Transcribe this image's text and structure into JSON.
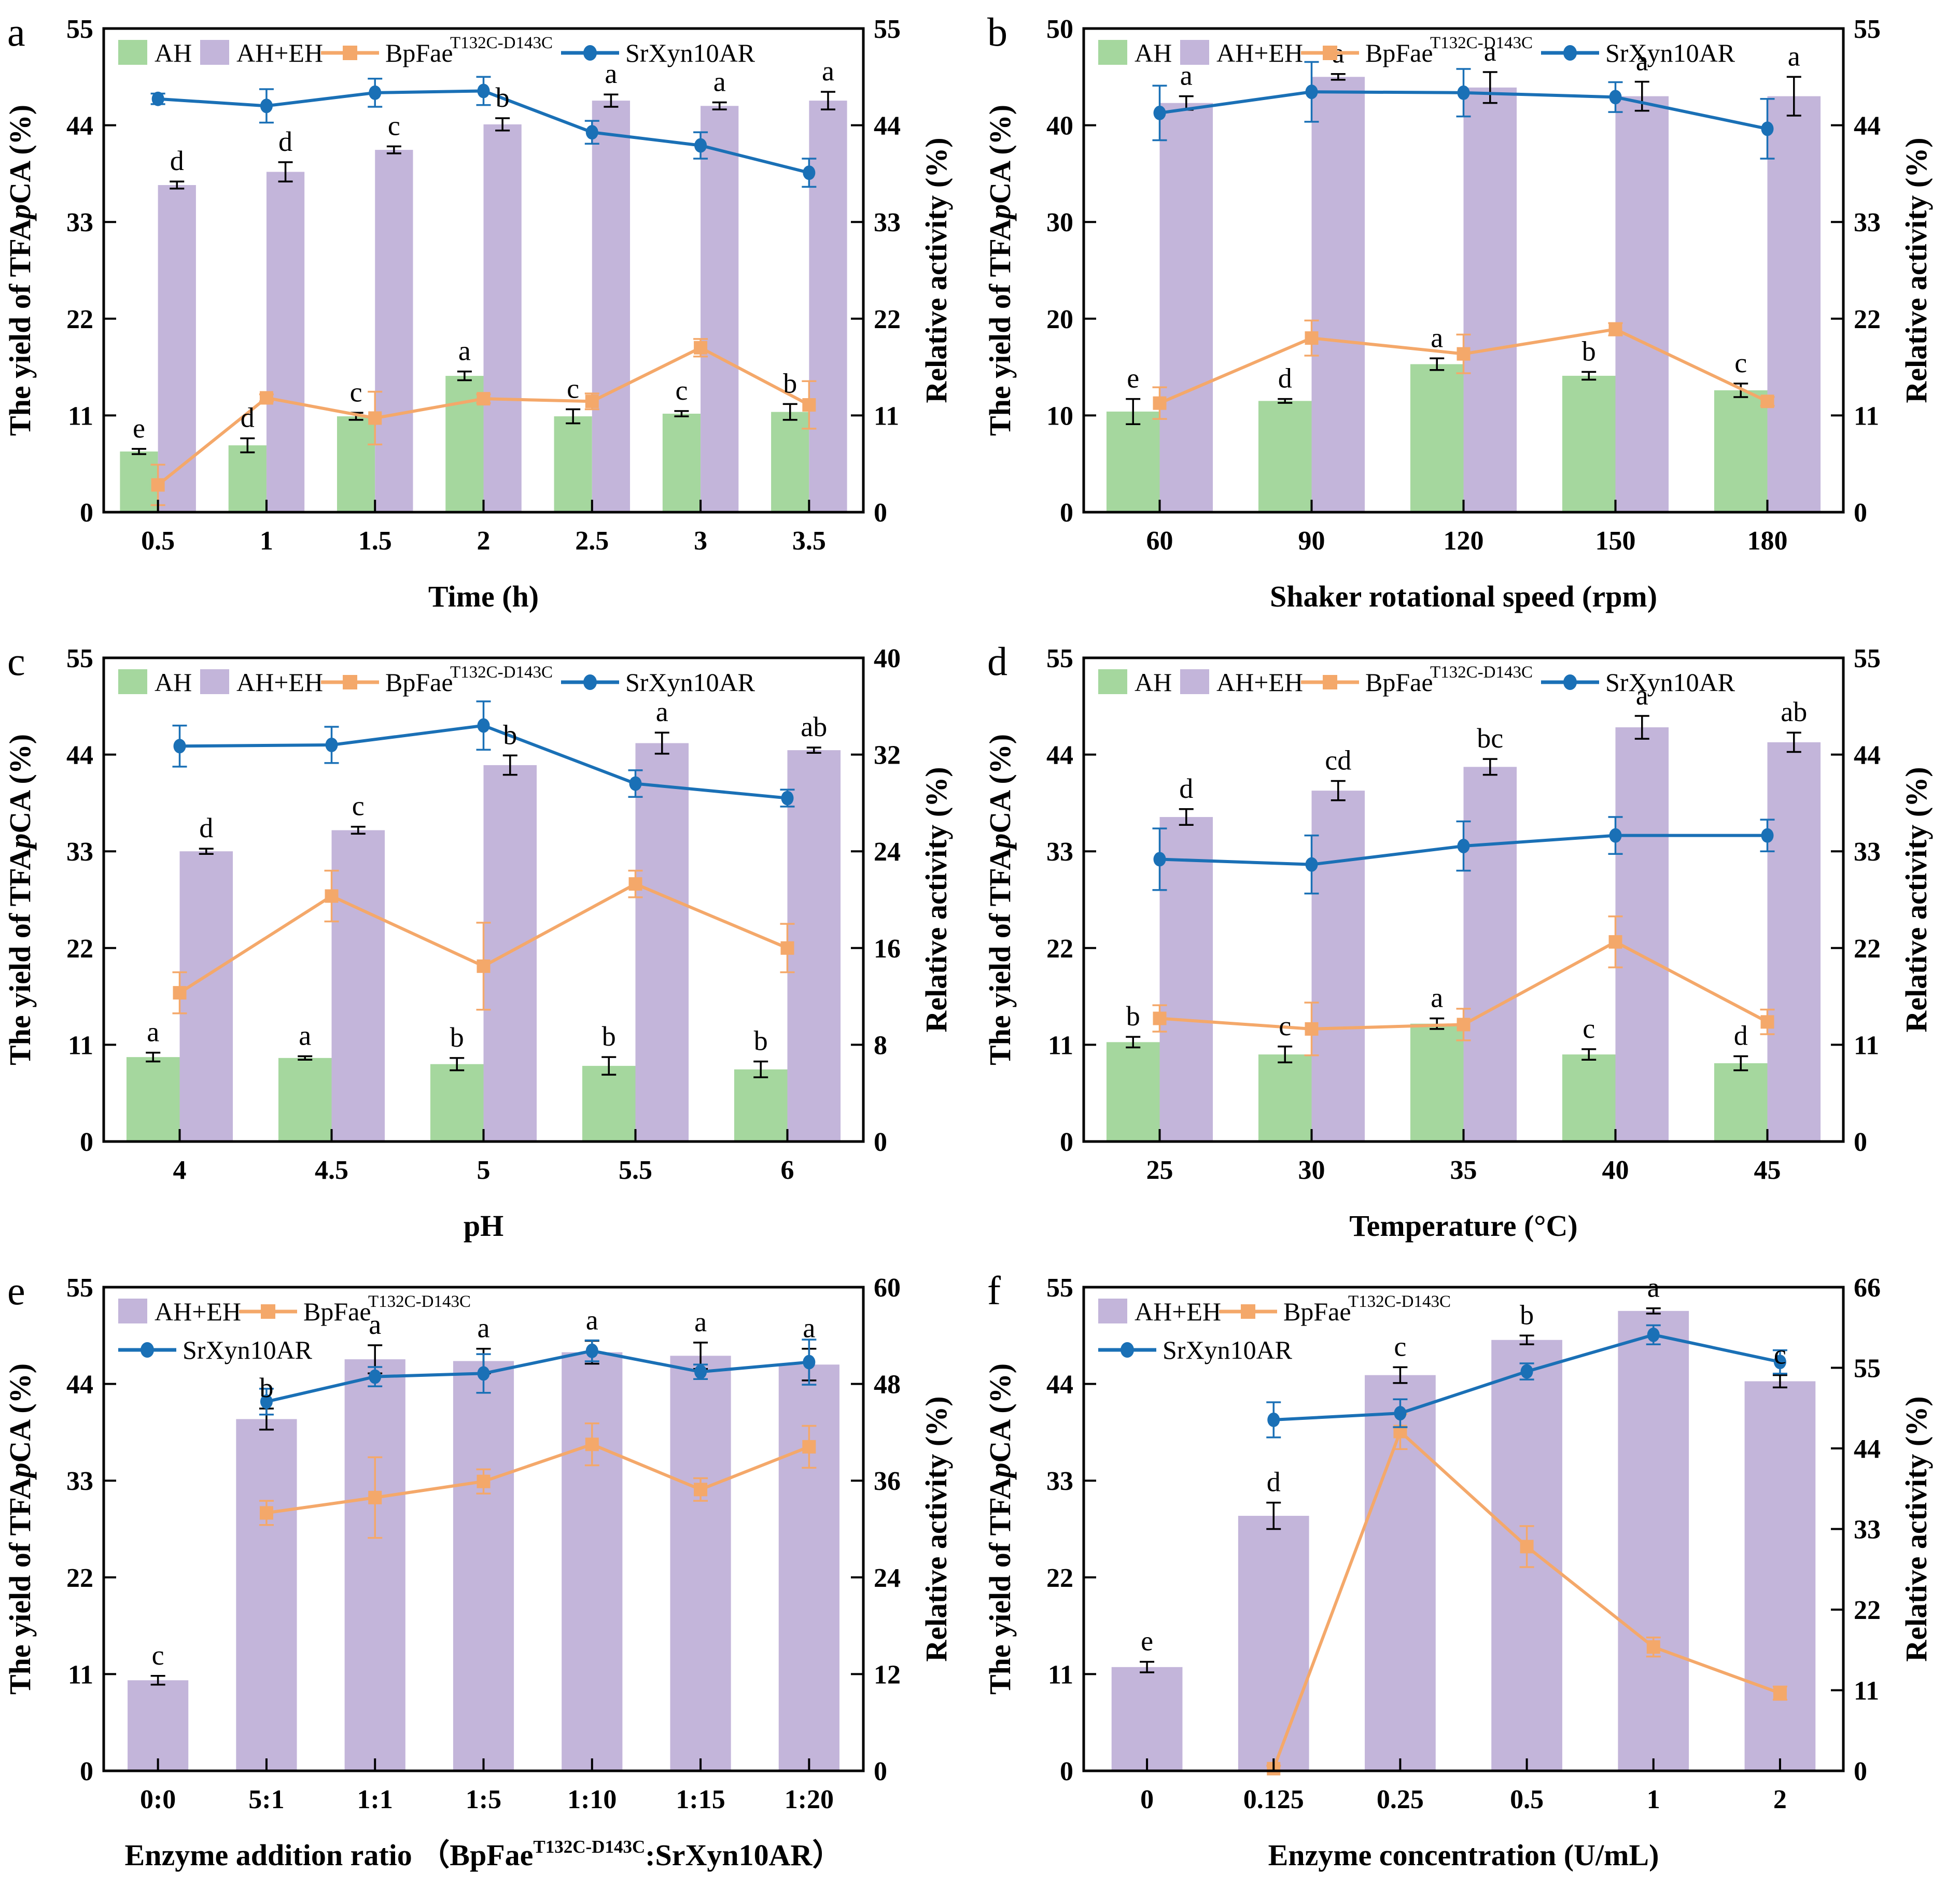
{
  "figure": {
    "background": "#ffffff",
    "colors": {
      "ah": "#a5d79e",
      "ah_eh": "#c3b5da",
      "bpfae": "#f4a86a",
      "srxyn": "#1a70b6",
      "axis": "#000000"
    },
    "legend_items": {
      "AH": {
        "kind": "swatch",
        "color": "ah",
        "label": "AH"
      },
      "AH+EH": {
        "kind": "swatch",
        "color": "ah_eh",
        "label": "AH+EH"
      },
      "BpFae": {
        "kind": "line",
        "color": "bpfae",
        "marker": "square",
        "label": "BpFae",
        "sup": "T132C-D143C"
      },
      "SrXyn10AR": {
        "kind": "line",
        "color": "srxyn",
        "marker": "circle",
        "label": "SrXyn10AR"
      }
    }
  },
  "chart_data": [
    {
      "panel": "a",
      "type": "bar",
      "letter": "a",
      "categories": [
        "0.5",
        "1",
        "1.5",
        "2",
        "2.5",
        "3",
        "3.5"
      ],
      "xlabel_parts": [
        {
          "t": "Time (h)"
        }
      ],
      "left_axis": {
        "label_parts": [
          {
            "t": "The yield of TFA"
          },
          {
            "t": "p",
            "italic": true
          },
          {
            "t": "CA (%)"
          }
        ],
        "min": 0,
        "max": 55,
        "ticks": [
          0,
          11,
          22,
          33,
          44,
          55
        ]
      },
      "right_axis": {
        "label_parts": [
          {
            "t": "Relative activity (%)"
          }
        ],
        "min": 0,
        "max": 55,
        "ticks": [
          0,
          11,
          22,
          33,
          44,
          55
        ]
      },
      "bars": [
        {
          "name": "AH",
          "color": "ah",
          "values": [
            6.9,
            7.6,
            10.9,
            15.5,
            10.9,
            11.2,
            11.4
          ],
          "errors": [
            0.3,
            0.8,
            0.4,
            0.5,
            0.8,
            0.3,
            0.9
          ],
          "letters": [
            "e",
            "d",
            "c",
            "a",
            "c",
            "c",
            "b"
          ]
        },
        {
          "name": "AH+EH",
          "color": "ah_eh",
          "values": [
            37.2,
            38.7,
            41.2,
            44.1,
            46.8,
            46.2,
            46.8
          ],
          "errors": [
            0.4,
            1.1,
            0.4,
            0.7,
            0.7,
            0.4,
            1.0
          ],
          "letters": [
            "d",
            "d",
            "c",
            "b",
            "a",
            "a",
            "a"
          ]
        }
      ],
      "lines": [
        {
          "key": "BpFae",
          "name": "BpFaeT132C-D143C",
          "color": "bpfae",
          "marker": "square",
          "axis": "right",
          "values": [
            3.1,
            13.0,
            10.7,
            12.9,
            12.6,
            18.7,
            12.2
          ],
          "errors": [
            2.3,
            0.4,
            3.0,
            0.5,
            0.9,
            1.0,
            2.7
          ]
        },
        {
          "key": "SrXyn10AR",
          "name": "SrXyn10AR",
          "color": "srxyn",
          "marker": "circle",
          "axis": "right",
          "values": [
            47.0,
            46.2,
            47.7,
            47.9,
            43.2,
            41.7,
            38.6
          ],
          "errors": [
            0.6,
            1.9,
            1.6,
            1.6,
            1.3,
            1.5,
            1.6
          ]
        }
      ],
      "legend_rows": [
        [
          "AH",
          "AH+EH",
          "BpFae",
          "SrXyn10AR"
        ]
      ]
    },
    {
      "panel": "b",
      "type": "bar",
      "letter": "b",
      "categories": [
        "60",
        "90",
        "120",
        "150",
        "180"
      ],
      "xlabel_parts": [
        {
          "t": "Shaker rotational speed (rpm)"
        }
      ],
      "left_axis": {
        "label_parts": [
          {
            "t": "The yield of TFA"
          },
          {
            "t": "p",
            "italic": true
          },
          {
            "t": "CA (%)"
          }
        ],
        "min": 0,
        "max": 50,
        "ticks": [
          0,
          10,
          20,
          30,
          40,
          50
        ]
      },
      "right_axis": {
        "label_parts": [
          {
            "t": "Relative activity (%)"
          }
        ],
        "min": 0,
        "max": 55,
        "ticks": [
          0,
          11,
          22,
          33,
          44,
          55
        ]
      },
      "bars": [
        {
          "name": "AH",
          "color": "ah",
          "values": [
            10.4,
            11.5,
            15.3,
            14.1,
            12.6
          ],
          "errors": [
            1.3,
            0.2,
            0.6,
            0.4,
            0.7
          ],
          "letters": [
            "e",
            "d",
            "a",
            "b",
            "c"
          ]
        },
        {
          "name": "AH+EH",
          "color": "ah_eh",
          "values": [
            42.3,
            45.0,
            43.9,
            43.0,
            43.0
          ],
          "errors": [
            0.7,
            0.3,
            1.6,
            1.5,
            2.0
          ],
          "letters": [
            "a",
            "a",
            "a",
            "a",
            "a"
          ]
        }
      ],
      "lines": [
        {
          "key": "BpFae",
          "name": "BpFaeT132C-D143C",
          "color": "bpfae",
          "marker": "square",
          "axis": "right",
          "values": [
            12.4,
            19.8,
            18.0,
            20.8,
            12.6
          ],
          "errors": [
            1.8,
            2.0,
            2.2,
            0.7,
            0.5
          ]
        },
        {
          "key": "SrXyn10AR",
          "name": "SrXyn10AR",
          "color": "srxyn",
          "marker": "circle",
          "axis": "right",
          "values": [
            45.4,
            47.8,
            47.7,
            47.2,
            43.6
          ],
          "errors": [
            3.1,
            3.4,
            2.7,
            1.7,
            3.4
          ]
        }
      ],
      "legend_rows": [
        [
          "AH",
          "AH+EH",
          "BpFae",
          "SrXyn10AR"
        ]
      ]
    },
    {
      "panel": "c",
      "type": "bar",
      "letter": "c",
      "categories": [
        "4",
        "4.5",
        "5",
        "5.5",
        "6"
      ],
      "xlabel_parts": [
        {
          "t": "pH"
        }
      ],
      "left_axis": {
        "label_parts": [
          {
            "t": "The yield of TFA"
          },
          {
            "t": "p",
            "italic": true
          },
          {
            "t": "CA (%)"
          }
        ],
        "min": 0,
        "max": 55,
        "ticks": [
          0,
          11,
          22,
          33,
          44,
          55
        ]
      },
      "right_axis": {
        "label_parts": [
          {
            "t": "Relative activity (%)"
          }
        ],
        "min": 0,
        "max": 40,
        "ticks": [
          0,
          8,
          16,
          24,
          32,
          40
        ]
      },
      "bars": [
        {
          "name": "AH",
          "color": "ah",
          "values": [
            9.6,
            9.5,
            8.8,
            8.6,
            8.2
          ],
          "errors": [
            0.5,
            0.2,
            0.7,
            1.0,
            0.9
          ],
          "letters": [
            "a",
            "a",
            "b",
            "b",
            "b"
          ]
        },
        {
          "name": "AH+EH",
          "color": "ah_eh",
          "values": [
            33.0,
            35.4,
            42.8,
            45.3,
            44.5
          ],
          "errors": [
            0.3,
            0.4,
            1.1,
            1.2,
            0.3
          ],
          "letters": [
            "d",
            "c",
            "b",
            "a",
            "ab"
          ]
        }
      ],
      "lines": [
        {
          "key": "BpFae",
          "name": "BpFaeT132C-D143C",
          "color": "bpfae",
          "marker": "square",
          "axis": "right",
          "values": [
            12.3,
            20.3,
            14.5,
            21.3,
            16.0
          ],
          "errors": [
            1.7,
            2.1,
            3.6,
            1.1,
            2.0
          ]
        },
        {
          "key": "SrXyn10AR",
          "name": "SrXyn10AR",
          "color": "srxyn",
          "marker": "circle",
          "axis": "right",
          "values": [
            32.7,
            32.8,
            34.4,
            29.6,
            28.4
          ],
          "errors": [
            1.7,
            1.5,
            2.0,
            1.1,
            0.7
          ]
        }
      ],
      "legend_rows": [
        [
          "AH",
          "AH+EH",
          "BpFae",
          "SrXyn10AR"
        ]
      ]
    },
    {
      "panel": "d",
      "type": "bar",
      "letter": "d",
      "categories": [
        "25",
        "30",
        "35",
        "40",
        "45"
      ],
      "xlabel_parts": [
        {
          "t": "Temperature (°C)"
        }
      ],
      "left_axis": {
        "label_parts": [
          {
            "t": "The yield of TFA"
          },
          {
            "t": "p",
            "italic": true
          },
          {
            "t": "CA (%)"
          }
        ],
        "min": 0,
        "max": 55,
        "ticks": [
          0,
          11,
          22,
          33,
          44,
          55
        ]
      },
      "right_axis": {
        "label_parts": [
          {
            "t": "Relative activity (%)"
          }
        ],
        "min": 0,
        "max": 55,
        "ticks": [
          0,
          11,
          22,
          33,
          44,
          55
        ]
      },
      "bars": [
        {
          "name": "AH",
          "color": "ah",
          "values": [
            11.3,
            9.9,
            13.4,
            9.9,
            8.9
          ],
          "errors": [
            0.6,
            0.9,
            0.6,
            0.6,
            0.8
          ],
          "letters": [
            "b",
            "c",
            "a",
            "c",
            "d"
          ]
        },
        {
          "name": "AH+EH",
          "color": "ah_eh",
          "values": [
            36.9,
            39.9,
            42.6,
            47.1,
            45.4
          ],
          "errors": [
            0.9,
            1.1,
            0.9,
            1.3,
            1.1
          ],
          "letters": [
            "d",
            "cd",
            "bc",
            "a",
            "ab"
          ]
        }
      ],
      "lines": [
        {
          "key": "BpFae",
          "name": "BpFaeT132C-D143C",
          "color": "bpfae",
          "marker": "square",
          "axis": "right",
          "values": [
            14.0,
            12.8,
            13.3,
            22.7,
            13.6
          ],
          "errors": [
            1.5,
            3.0,
            1.8,
            2.9,
            1.4
          ]
        },
        {
          "key": "SrXyn10AR",
          "name": "SrXyn10AR",
          "color": "srxyn",
          "marker": "circle",
          "axis": "right",
          "values": [
            32.1,
            31.5,
            33.6,
            34.8,
            34.8
          ],
          "errors": [
            3.5,
            3.3,
            2.8,
            2.1,
            1.8
          ]
        }
      ],
      "legend_rows": [
        [
          "AH",
          "AH+EH",
          "BpFae",
          "SrXyn10AR"
        ]
      ]
    },
    {
      "panel": "e",
      "type": "bar",
      "letter": "e",
      "categories": [
        "0:0",
        "5:1",
        "1:1",
        "1:5",
        "1:10",
        "1:15",
        "1:20"
      ],
      "xlabel_parts": [
        {
          "t": "Enzyme addition ratio （BpFae"
        },
        {
          "t": "T132C-D143C",
          "sup": true
        },
        {
          "t": ":SrXyn10AR）"
        }
      ],
      "left_axis": {
        "label_parts": [
          {
            "t": "The yield of TFA"
          },
          {
            "t": "p",
            "italic": true
          },
          {
            "t": "CA (%)"
          }
        ],
        "min": 0,
        "max": 55,
        "ticks": [
          0,
          11,
          22,
          33,
          44,
          55
        ]
      },
      "right_axis": {
        "label_parts": [
          {
            "t": "Relative activity (%)"
          }
        ],
        "min": 0,
        "max": 60,
        "ticks": [
          0,
          12,
          24,
          36,
          48,
          60
        ]
      },
      "bars": [
        {
          "name": "AH+EH",
          "color": "ah_eh",
          "values": [
            10.3,
            40.0,
            46.8,
            46.6,
            47.6,
            47.2,
            46.2
          ],
          "errors": [
            0.5,
            1.2,
            1.6,
            1.4,
            1.3,
            1.5,
            1.8
          ],
          "letters": [
            "c",
            "b",
            "a",
            "a",
            "a",
            "a",
            "a"
          ]
        }
      ],
      "lines": [
        {
          "key": "BpFae",
          "name": "BpFaeT132C-D143C",
          "color": "bpfae",
          "marker": "square",
          "axis": "right",
          "values": [
            null,
            32.0,
            33.9,
            35.9,
            40.5,
            34.9,
            40.2
          ],
          "errors": [
            null,
            1.5,
            5.0,
            1.5,
            2.6,
            1.4,
            2.6
          ]
        },
        {
          "key": "SrXyn10AR",
          "name": "SrXyn10AR",
          "color": "srxyn",
          "marker": "circle",
          "axis": "right",
          "values": [
            null,
            45.8,
            48.9,
            49.3,
            52.1,
            49.5,
            50.7
          ],
          "errors": [
            null,
            1.6,
            1.2,
            2.4,
            1.3,
            0.9,
            2.8
          ]
        }
      ],
      "legend_rows": [
        [
          "AH+EH",
          "BpFae"
        ],
        [
          "SrXyn10AR"
        ]
      ]
    },
    {
      "panel": "f",
      "type": "bar",
      "letter": "f",
      "categories": [
        "0",
        "0.125",
        "0.25",
        "0.5",
        "1",
        "2"
      ],
      "xlabel_parts": [
        {
          "t": "Enzyme concentration (U/mL)"
        }
      ],
      "left_axis": {
        "label_parts": [
          {
            "t": "The yield of TFA"
          },
          {
            "t": "p",
            "italic": true
          },
          {
            "t": "CA (%)"
          }
        ],
        "min": 0,
        "max": 55,
        "ticks": [
          0,
          11,
          22,
          33,
          44,
          55
        ]
      },
      "right_axis": {
        "label_parts": [
          {
            "t": "Relative activity (%)"
          }
        ],
        "min": 0,
        "max": 66,
        "ticks": [
          0,
          11,
          22,
          33,
          44,
          55,
          66
        ]
      },
      "bars": [
        {
          "name": "AH+EH",
          "color": "ah_eh",
          "values": [
            11.8,
            29.0,
            45.0,
            49.0,
            52.3,
            44.3
          ],
          "errors": [
            0.6,
            1.5,
            0.9,
            0.5,
            0.3,
            0.7
          ],
          "letters": [
            "e",
            "d",
            "c",
            "b",
            "a",
            "c"
          ]
        }
      ],
      "lines": [
        {
          "key": "BpFae",
          "name": "BpFaeT132C-D143C",
          "color": "bpfae",
          "marker": "square",
          "axis": "right",
          "values": [
            null,
            0.3,
            46.3,
            30.6,
            16.9,
            10.6
          ],
          "errors": [
            null,
            0.4,
            2.4,
            2.8,
            1.3,
            0.9
          ]
        },
        {
          "key": "SrXyn10AR",
          "name": "SrXyn10AR",
          "color": "srxyn",
          "marker": "circle",
          "axis": "right",
          "values": [
            null,
            47.9,
            48.8,
            54.5,
            59.5,
            55.8
          ],
          "errors": [
            null,
            2.4,
            1.9,
            1.1,
            1.3,
            1.6
          ]
        }
      ],
      "legend_rows": [
        [
          "AH+EH",
          "BpFae"
        ],
        [
          "SrXyn10AR"
        ]
      ]
    }
  ]
}
